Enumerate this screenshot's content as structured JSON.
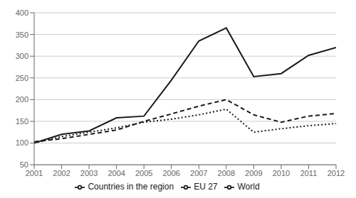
{
  "chart_data": {
    "type": "line",
    "x": [
      2001,
      2002,
      2003,
      2004,
      2005,
      2006,
      2007,
      2008,
      2009,
      2010,
      2011,
      2012
    ],
    "series": [
      {
        "name": "Countries in the region",
        "color": "#1a1a1a",
        "line_style": "solid",
        "values": [
          100,
          120,
          128,
          158,
          162,
          245,
          335,
          365,
          253,
          260,
          302,
          320
        ]
      },
      {
        "name": "EU 27",
        "color": "#1a1a1a",
        "line_style": "dotted",
        "values": [
          100,
          115,
          125,
          135,
          148,
          155,
          165,
          178,
          125,
          133,
          140,
          145
        ]
      },
      {
        "name": "World",
        "color": "#1a1a1a",
        "line_style": "dashed",
        "values": [
          103,
          110,
          120,
          130,
          150,
          167,
          185,
          200,
          165,
          148,
          162,
          168
        ]
      }
    ],
    "xlim": [
      2001,
      2012
    ],
    "xticks": [
      2001,
      2002,
      2003,
      2004,
      2005,
      2006,
      2007,
      2008,
      2009,
      2010,
      2011,
      2012
    ],
    "ylim": [
      50,
      400
    ],
    "yticks": [
      50,
      100,
      150,
      200,
      250,
      300,
      350,
      400
    ],
    "grid": true,
    "legend": "bottom"
  }
}
